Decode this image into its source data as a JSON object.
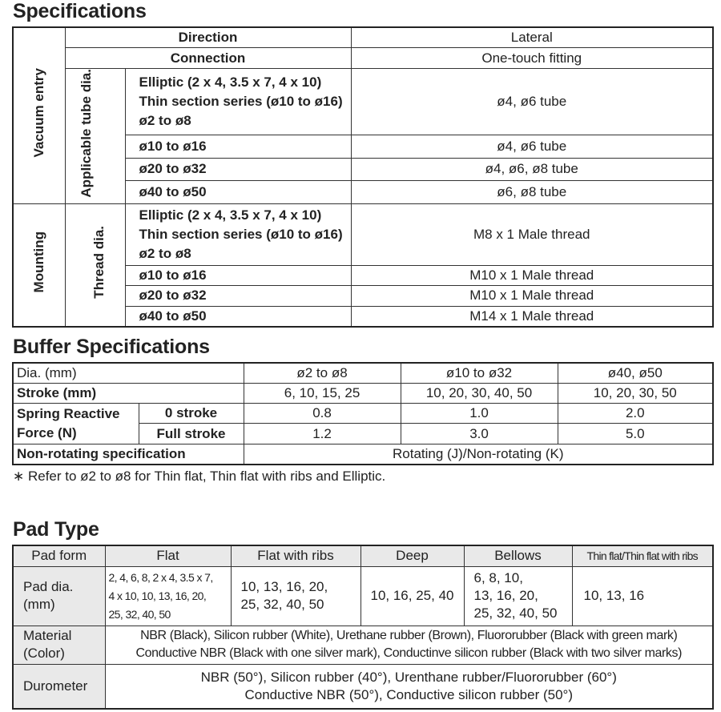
{
  "specifications": {
    "title": "Specifications",
    "direction": {
      "label": "Direction",
      "value": "Lateral"
    },
    "connection": {
      "label": "Connection",
      "value": "One-touch fitting"
    },
    "vacuum_entry": {
      "group_label": "Vacuum entry",
      "sub_label": "Applicable tube dia.",
      "rows": [
        {
          "lines": [
            "Elliptic (2 x 4, 3.5 x 7, 4 x 10)",
            "Thin section series (ø10 to ø16)",
            "ø2 to ø8"
          ],
          "value": "ø4, ø6 tube"
        },
        {
          "label": "ø10 to ø16",
          "value": "ø4, ø6 tube"
        },
        {
          "label": "ø20 to ø32",
          "value": "ø4, ø6, ø8 tube"
        },
        {
          "label": "ø40 to ø50",
          "value": "ø6, ø8 tube"
        }
      ]
    },
    "mounting": {
      "group_label": "Mounting",
      "sub_label": "Thread dia.",
      "rows": [
        {
          "lines": [
            "Elliptic (2 x 4, 3.5 x 7, 4 x 10)",
            "Thin section series (ø10 to ø16)",
            "ø2 to ø8"
          ],
          "value": "M8 x 1 Male thread"
        },
        {
          "label": "ø10 to ø16",
          "value": "M10 x 1 Male thread"
        },
        {
          "label": "ø20 to ø32",
          "value": "M10 x 1 Male thread"
        },
        {
          "label": "ø40 to ø50",
          "value": "M14 x 1 Male thread"
        }
      ]
    }
  },
  "buffer": {
    "title": "Buffer Specifications",
    "dia": {
      "label": "Dia. (mm)",
      "values": [
        "ø2 to ø8",
        "ø10 to ø32",
        "ø40, ø50"
      ]
    },
    "stroke": {
      "label": "Stroke (mm)",
      "values": [
        "6, 10, 15, 25",
        "10, 20, 30, 40, 50",
        "10, 20, 30, 50"
      ]
    },
    "spring_force": {
      "label_main": "Spring Reactive",
      "label_force": "Force",
      "label_unit": "(N)",
      "zero": {
        "label": "0 stroke",
        "values": [
          "0.8",
          "1.0",
          "2.0"
        ]
      },
      "full": {
        "label": "Full stroke",
        "values": [
          "1.2",
          "3.0",
          "5.0"
        ]
      }
    },
    "non_rotating": {
      "label": "Non-rotating specification",
      "value": "Rotating (J)/Non-rotating (K)"
    },
    "footnote": "∗ Refer to ø2 to ø8 for Thin flat, Thin flat with ribs and Elliptic."
  },
  "pad_type": {
    "title": "Pad Type",
    "headers": [
      "Pad form",
      "Flat",
      "Flat with ribs",
      "Deep",
      "Bellows",
      "Thin flat/Thin flat with ribs"
    ],
    "pad_dia": {
      "label_lines": [
        "Pad dia.",
        "(mm)"
      ],
      "flat": [
        "2, 4, 6, 8, 2 x 4, 3.5 x 7,",
        "4 x 10, 10, 13, 16, 20,",
        "25, 32, 40, 50"
      ],
      "flat_ribs": [
        "10, 13, 16, 20,",
        "25, 32, 40, 50"
      ],
      "deep": "10, 16, 25, 40",
      "bellows": [
        "6, 8, 10,",
        "13, 16, 20,",
        "25, 32, 40, 50"
      ],
      "thin_flat": "10, 13, 16"
    },
    "material": {
      "label_lines": [
        "Material",
        "(Color)"
      ],
      "lines": [
        "NBR (Black), Silicon rubber (White), Urethane rubber (Brown), Fluororubber (Black with green mark)",
        "Conductive NBR (Black with one silver mark), Conductinve silicon rubber (Black with two silver marks)"
      ]
    },
    "durometer": {
      "label": "Durometer",
      "lines": [
        "NBR (50°), Silicon rubber (40°), Urenthane rubber/Fluororubber (60°)",
        "Conductive NBR (50°), Conductive silicon rubber (50°)"
      ]
    }
  }
}
